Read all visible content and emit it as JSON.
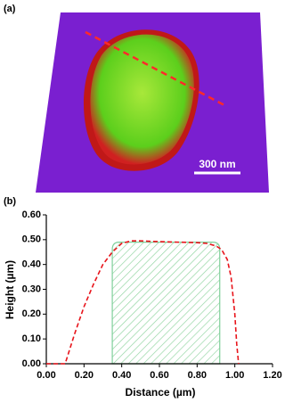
{
  "panel_labels": [
    "(a)",
    "(b)"
  ],
  "scale_bar": "300 nm",
  "chart_data": {
    "type": "line",
    "xlabel": "Distance (µm)",
    "ylabel": "Height (µm)",
    "x": [
      0.0,
      0.05,
      0.1,
      0.15,
      0.2,
      0.25,
      0.3,
      0.35,
      0.4,
      0.45,
      0.5,
      0.6,
      0.7,
      0.8,
      0.85,
      0.9,
      0.93,
      0.96,
      0.98,
      1.0,
      1.01,
      1.02
    ],
    "values": [
      0.0,
      0.0,
      0.0,
      0.12,
      0.23,
      0.32,
      0.4,
      0.45,
      0.485,
      0.495,
      0.495,
      0.492,
      0.49,
      0.488,
      0.485,
      0.475,
      0.46,
      0.42,
      0.35,
      0.2,
      0.08,
      0.0
    ],
    "color": "#e8141b",
    "line_style": "dashed",
    "highlight": {
      "xrange": [
        0.35,
        0.92
      ],
      "top": 0.49,
      "color": "#7fcf9a"
    },
    "xlim": [
      0.0,
      1.2
    ],
    "xticks": [
      {
        "value": 0,
        "label": "0.00"
      },
      {
        "value": 0.2,
        "label": "0.20"
      },
      {
        "value": 0.4,
        "label": "0.40"
      },
      {
        "value": 0.6,
        "label": "0.60"
      },
      {
        "value": 0.8,
        "label": "0.80"
      },
      {
        "value": 1.0,
        "label": "1.00"
      },
      {
        "value": 1.2,
        "label": "1.20"
      }
    ],
    "ylim": [
      0.0,
      0.6
    ],
    "yticks": [
      {
        "value": 0,
        "label": "0.00"
      },
      {
        "value": 0.1,
        "label": "0.10"
      },
      {
        "value": 0.2,
        "label": "0.20"
      },
      {
        "value": 0.3,
        "label": "0.30"
      },
      {
        "value": 0.4,
        "label": "0.40"
      },
      {
        "value": 0.5,
        "label": "0.50"
      },
      {
        "value": 0.6,
        "label": "0.60"
      }
    ]
  }
}
